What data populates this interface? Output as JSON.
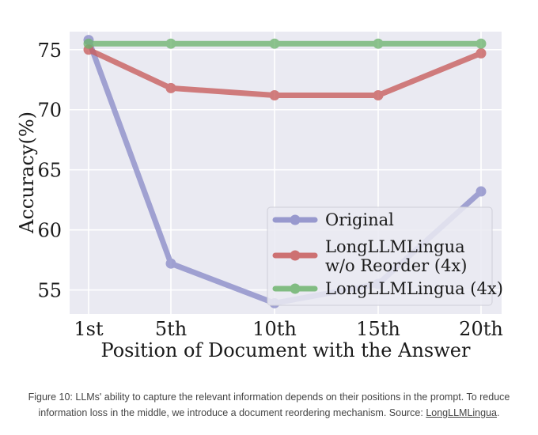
{
  "chart_data": {
    "type": "line",
    "categories": [
      "1st",
      "5th",
      "10th",
      "15th",
      "20th"
    ],
    "series": [
      {
        "name": "Original",
        "values": [
          75.8,
          57.2,
          53.9,
          55.5,
          63.2
        ],
        "color": "#8a8cc8"
      },
      {
        "name": "LongLLMLingua\nw/o Reorder (4x)",
        "values": [
          75.0,
          71.8,
          71.2,
          71.2,
          74.7
        ],
        "color": "#c85c5c"
      },
      {
        "name": "LongLLMLingua (4x)",
        "values": [
          75.5,
          75.5,
          75.5,
          75.5,
          75.5
        ],
        "color": "#6fb56f"
      }
    ],
    "xlabel": "Position of Document with the Answer",
    "ylabel": "Accuracy(%)",
    "yticks": [
      "55",
      "60",
      "65",
      "70",
      "75"
    ],
    "ylim": [
      53,
      76.5
    ],
    "grid": true,
    "legend_position": "lower-right",
    "background": "#eaeaf2"
  },
  "caption": {
    "text": "Figure 10: LLMs' ability to capture the relevant information depends on their positions in the prompt. To reduce information loss in the middle, we introduce a document reordering mechanism. Source: ",
    "link_text": "LongLLMLingua",
    "end": "."
  }
}
